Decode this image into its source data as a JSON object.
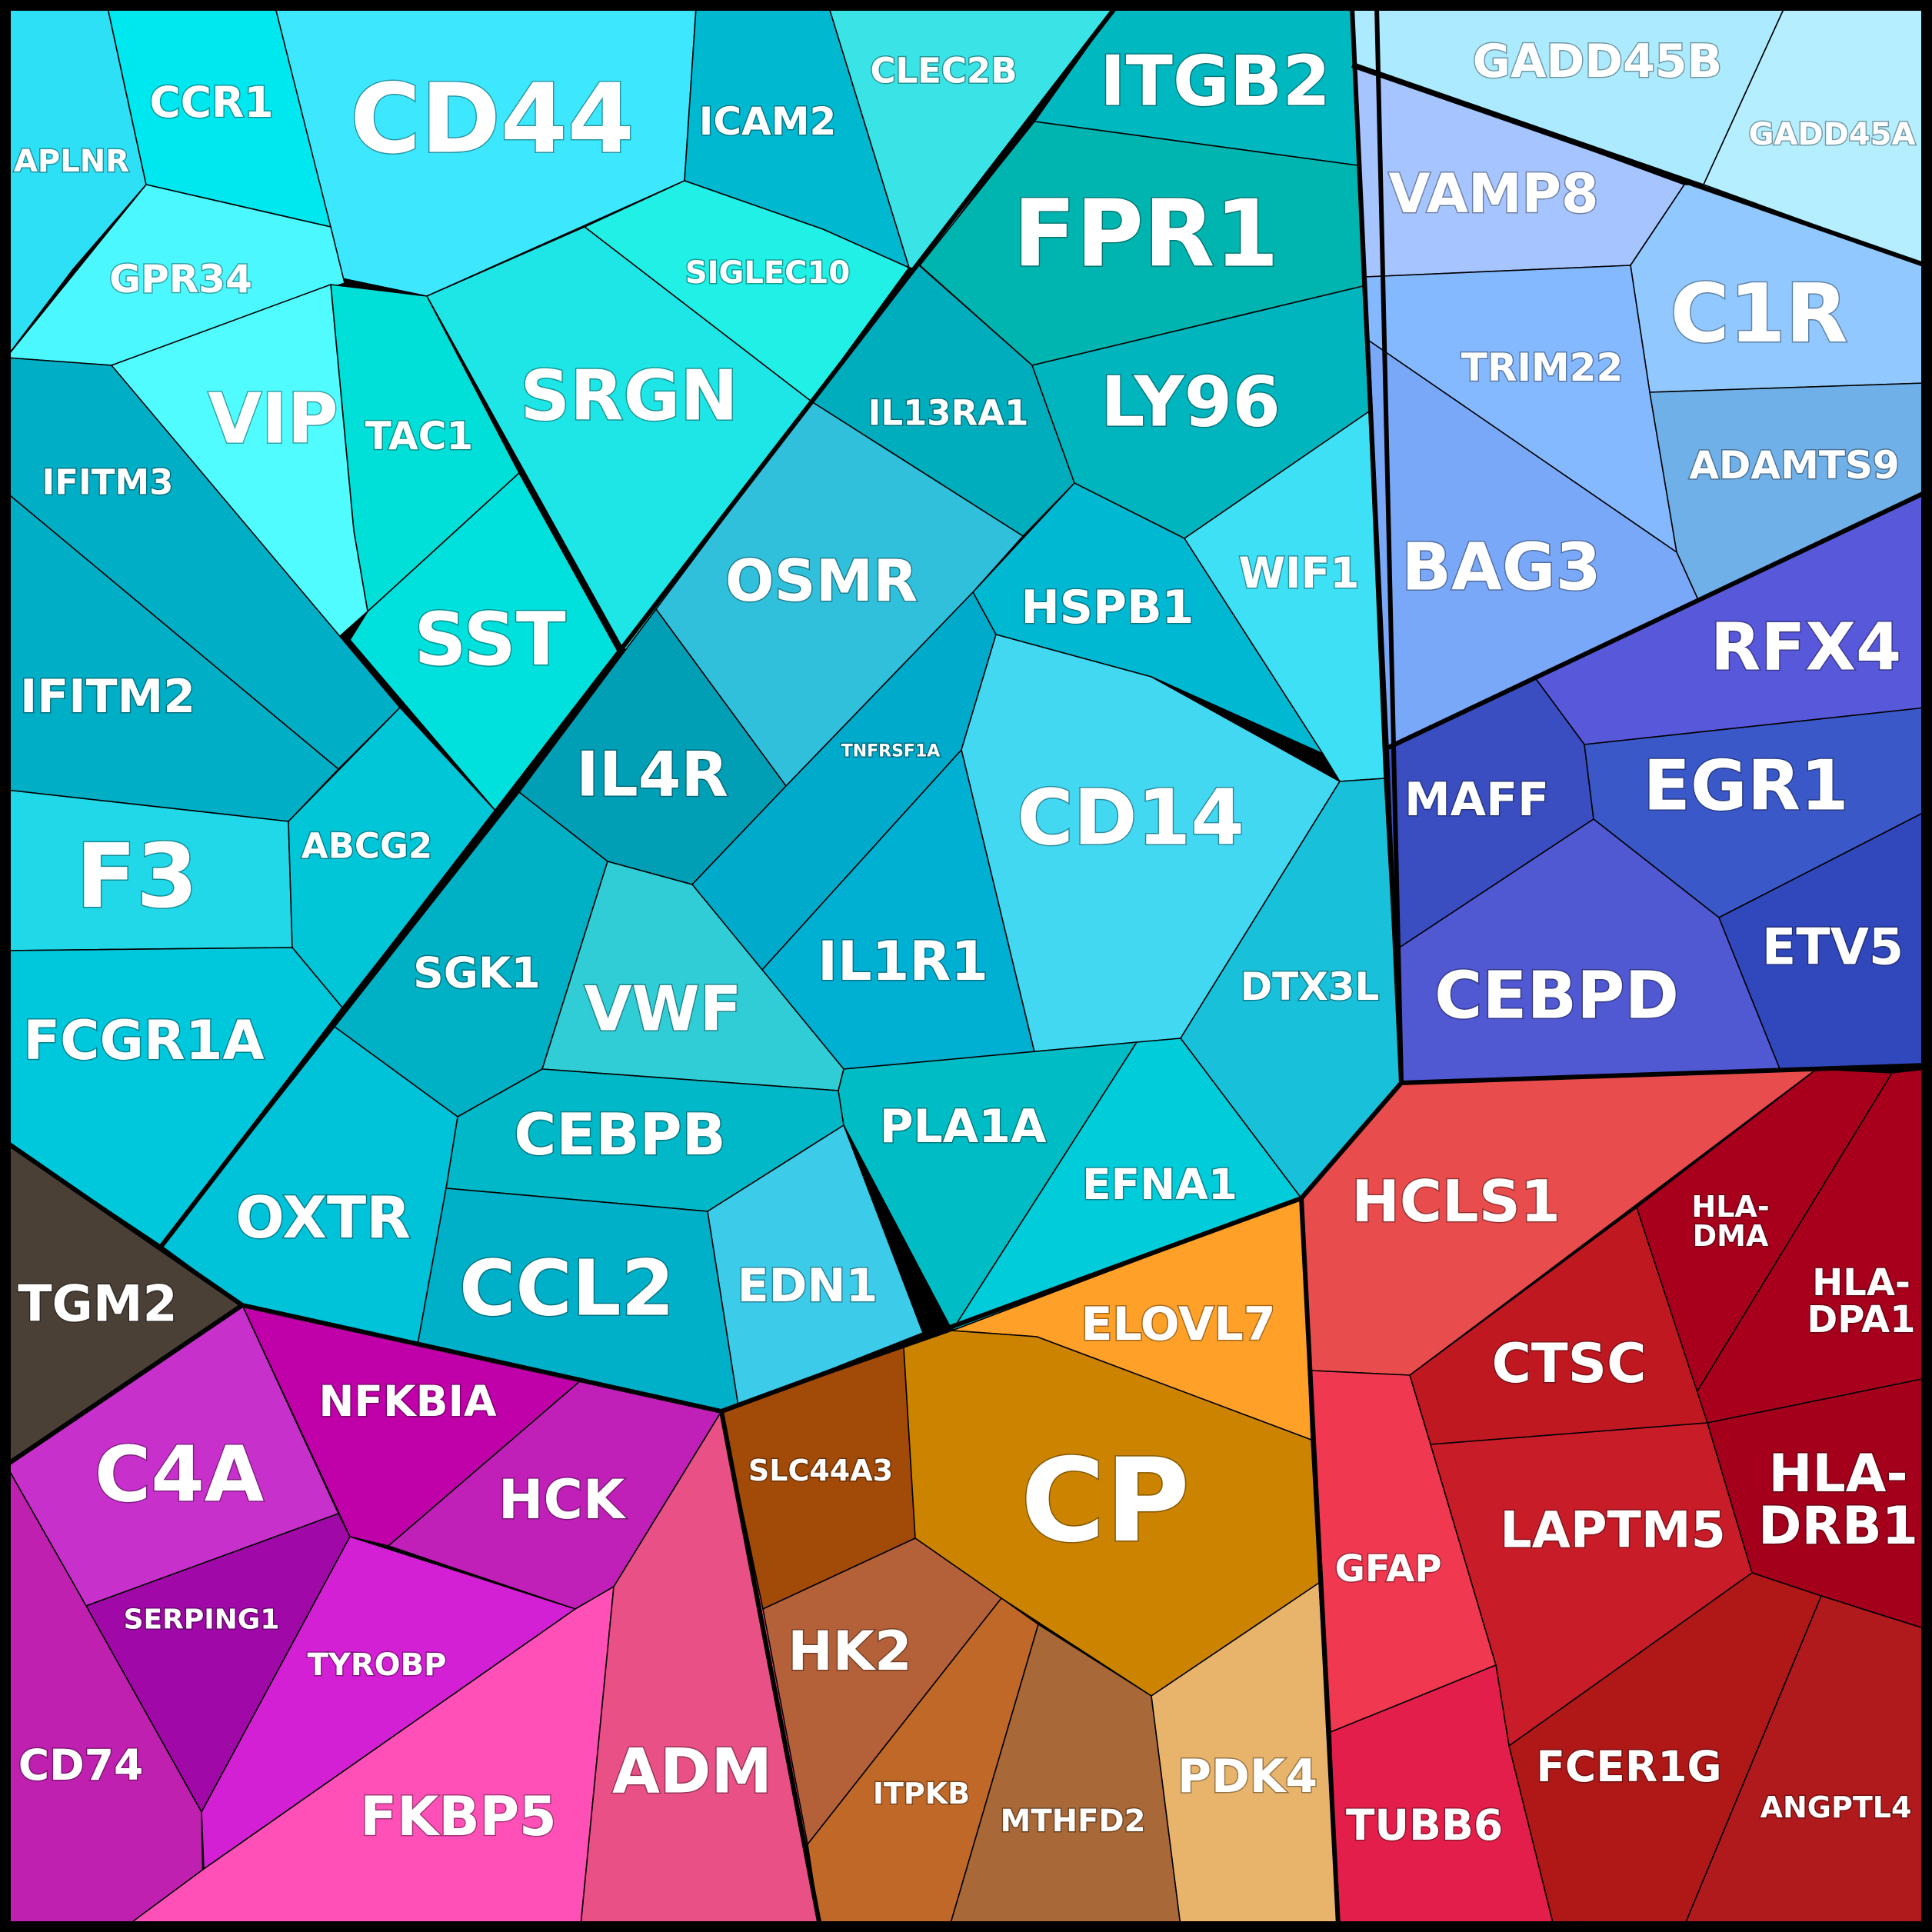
{
  "chart_data": {
    "type": "voronoi-treemap",
    "cells": [
      {
        "label": "CD44",
        "color": "#3de8ff"
      },
      {
        "label": "APLNR",
        "color": "#2ee0f5"
      },
      {
        "label": "CCR1",
        "color": "#00e8ef"
      },
      {
        "label": "ICAM2",
        "color": "#00b8d0"
      },
      {
        "label": "CLEC2B",
        "color": "#3ae3e6"
      },
      {
        "label": "ITGB2",
        "color": "#00b8bf"
      },
      {
        "label": "FPR1",
        "color": "#00b5b0"
      },
      {
        "label": "GPR34",
        "color": "#4cf8ff"
      },
      {
        "label": "SIGLEC10",
        "color": "#20f0e6"
      },
      {
        "label": "SRGN",
        "color": "#1ee6e6"
      },
      {
        "label": "TAC1",
        "color": "#00e0d8"
      },
      {
        "label": "VIP",
        "color": "#50fcff"
      },
      {
        "label": "IFITM3",
        "color": "#00aec5"
      },
      {
        "label": "IFITM2",
        "color": "#00aec5"
      },
      {
        "label": "SST",
        "color": "#00e0dd"
      },
      {
        "label": "IL13RA1",
        "color": "#00adbd"
      },
      {
        "label": "LY96",
        "color": "#00b5be"
      },
      {
        "label": "OSMR",
        "color": "#30c0db"
      },
      {
        "label": "HSPB1",
        "color": "#00b8d2"
      },
      {
        "label": "WIF1",
        "color": "#3ee0f5"
      },
      {
        "label": "F3",
        "color": "#20d8e8"
      },
      {
        "label": "ABCG2",
        "color": "#00c6d8"
      },
      {
        "label": "IL4R",
        "color": "#009fb5"
      },
      {
        "label": "TNFRSF1A",
        "color": "#00aacb"
      },
      {
        "label": "CD14",
        "color": "#42d8f2"
      },
      {
        "label": "IL1R1",
        "color": "#00b0d2"
      },
      {
        "label": "SGK1",
        "color": "#00b0c4"
      },
      {
        "label": "VWF",
        "color": "#30cdd6"
      },
      {
        "label": "FCGR1A",
        "color": "#00c8dc"
      },
      {
        "label": "DTX3L",
        "color": "#18c0da"
      },
      {
        "label": "CEBPB",
        "color": "#00b8c8"
      },
      {
        "label": "PLA1A",
        "color": "#00bcc4"
      },
      {
        "label": "EFNA1",
        "color": "#00ccda"
      },
      {
        "label": "OXTR",
        "color": "#00c2d8"
      },
      {
        "label": "CCL2",
        "color": "#00b0c8"
      },
      {
        "label": "EDN1",
        "color": "#3ccbe8"
      },
      {
        "label": "GADD45B",
        "color": "#acebff"
      },
      {
        "label": "GADD45A",
        "color": "#b4eeff"
      },
      {
        "label": "VAMP8",
        "color": "#a6c4ff"
      },
      {
        "label": "C1R",
        "color": "#90c8ff"
      },
      {
        "label": "TRIM22",
        "color": "#84b8ff"
      },
      {
        "label": "ADAMTS9",
        "color": "#70b0e8"
      },
      {
        "label": "BAG3",
        "color": "#7aa8f8"
      },
      {
        "label": "RFX4",
        "color": "#5858da"
      },
      {
        "label": "MAFF",
        "color": "#3a4ec2"
      },
      {
        "label": "EGR1",
        "color": "#3a58c8"
      },
      {
        "label": "CEBPD",
        "color": "#5058d2"
      },
      {
        "label": "ETV5",
        "color": "#3048bc"
      },
      {
        "label": "TGM2",
        "color": "#4a4036"
      },
      {
        "label": "C4A",
        "color": "#c830cc"
      },
      {
        "label": "NFKBIA",
        "color": "#c000a8"
      },
      {
        "label": "HCK",
        "color": "#c020b8"
      },
      {
        "label": "SERPING1",
        "color": "#a008a8"
      },
      {
        "label": "TYROBP",
        "color": "#d420d4"
      },
      {
        "label": "CD74",
        "color": "#c020b0"
      },
      {
        "label": "FKBP5",
        "color": "#ff50b8"
      },
      {
        "label": "ADM",
        "color": "#e85086"
      },
      {
        "label": "ELOVL7",
        "color": "#ffa028"
      },
      {
        "label": "SLC44A3",
        "color": "#a24a08"
      },
      {
        "label": "CP",
        "color": "#cc8400"
      },
      {
        "label": "HK2",
        "color": "#b46038"
      },
      {
        "label": "ITPKB",
        "color": "#c06828"
      },
      {
        "label": "MTHFD2",
        "color": "#a86838"
      },
      {
        "label": "PDK4",
        "color": "#e8b46c"
      },
      {
        "label": "HCLS1",
        "color": "#e84c4c"
      },
      {
        "label": "HLA-DMA",
        "color": "#a8001c"
      },
      {
        "label": "HLA-DPA1",
        "color": "#a8001c"
      },
      {
        "label": "CTSC",
        "color": "#c01820"
      },
      {
        "label": "GFAP",
        "color": "#f03850"
      },
      {
        "label": "LAPTM5",
        "color": "#c81c28"
      },
      {
        "label": "HLA-DRB1",
        "color": "#a4001c"
      },
      {
        "label": "FCER1G",
        "color": "#b01818"
      },
      {
        "label": "TUBB6",
        "color": "#e41e4a"
      },
      {
        "label": "ANGPTL4",
        "color": "#b01a1c"
      }
    ]
  }
}
